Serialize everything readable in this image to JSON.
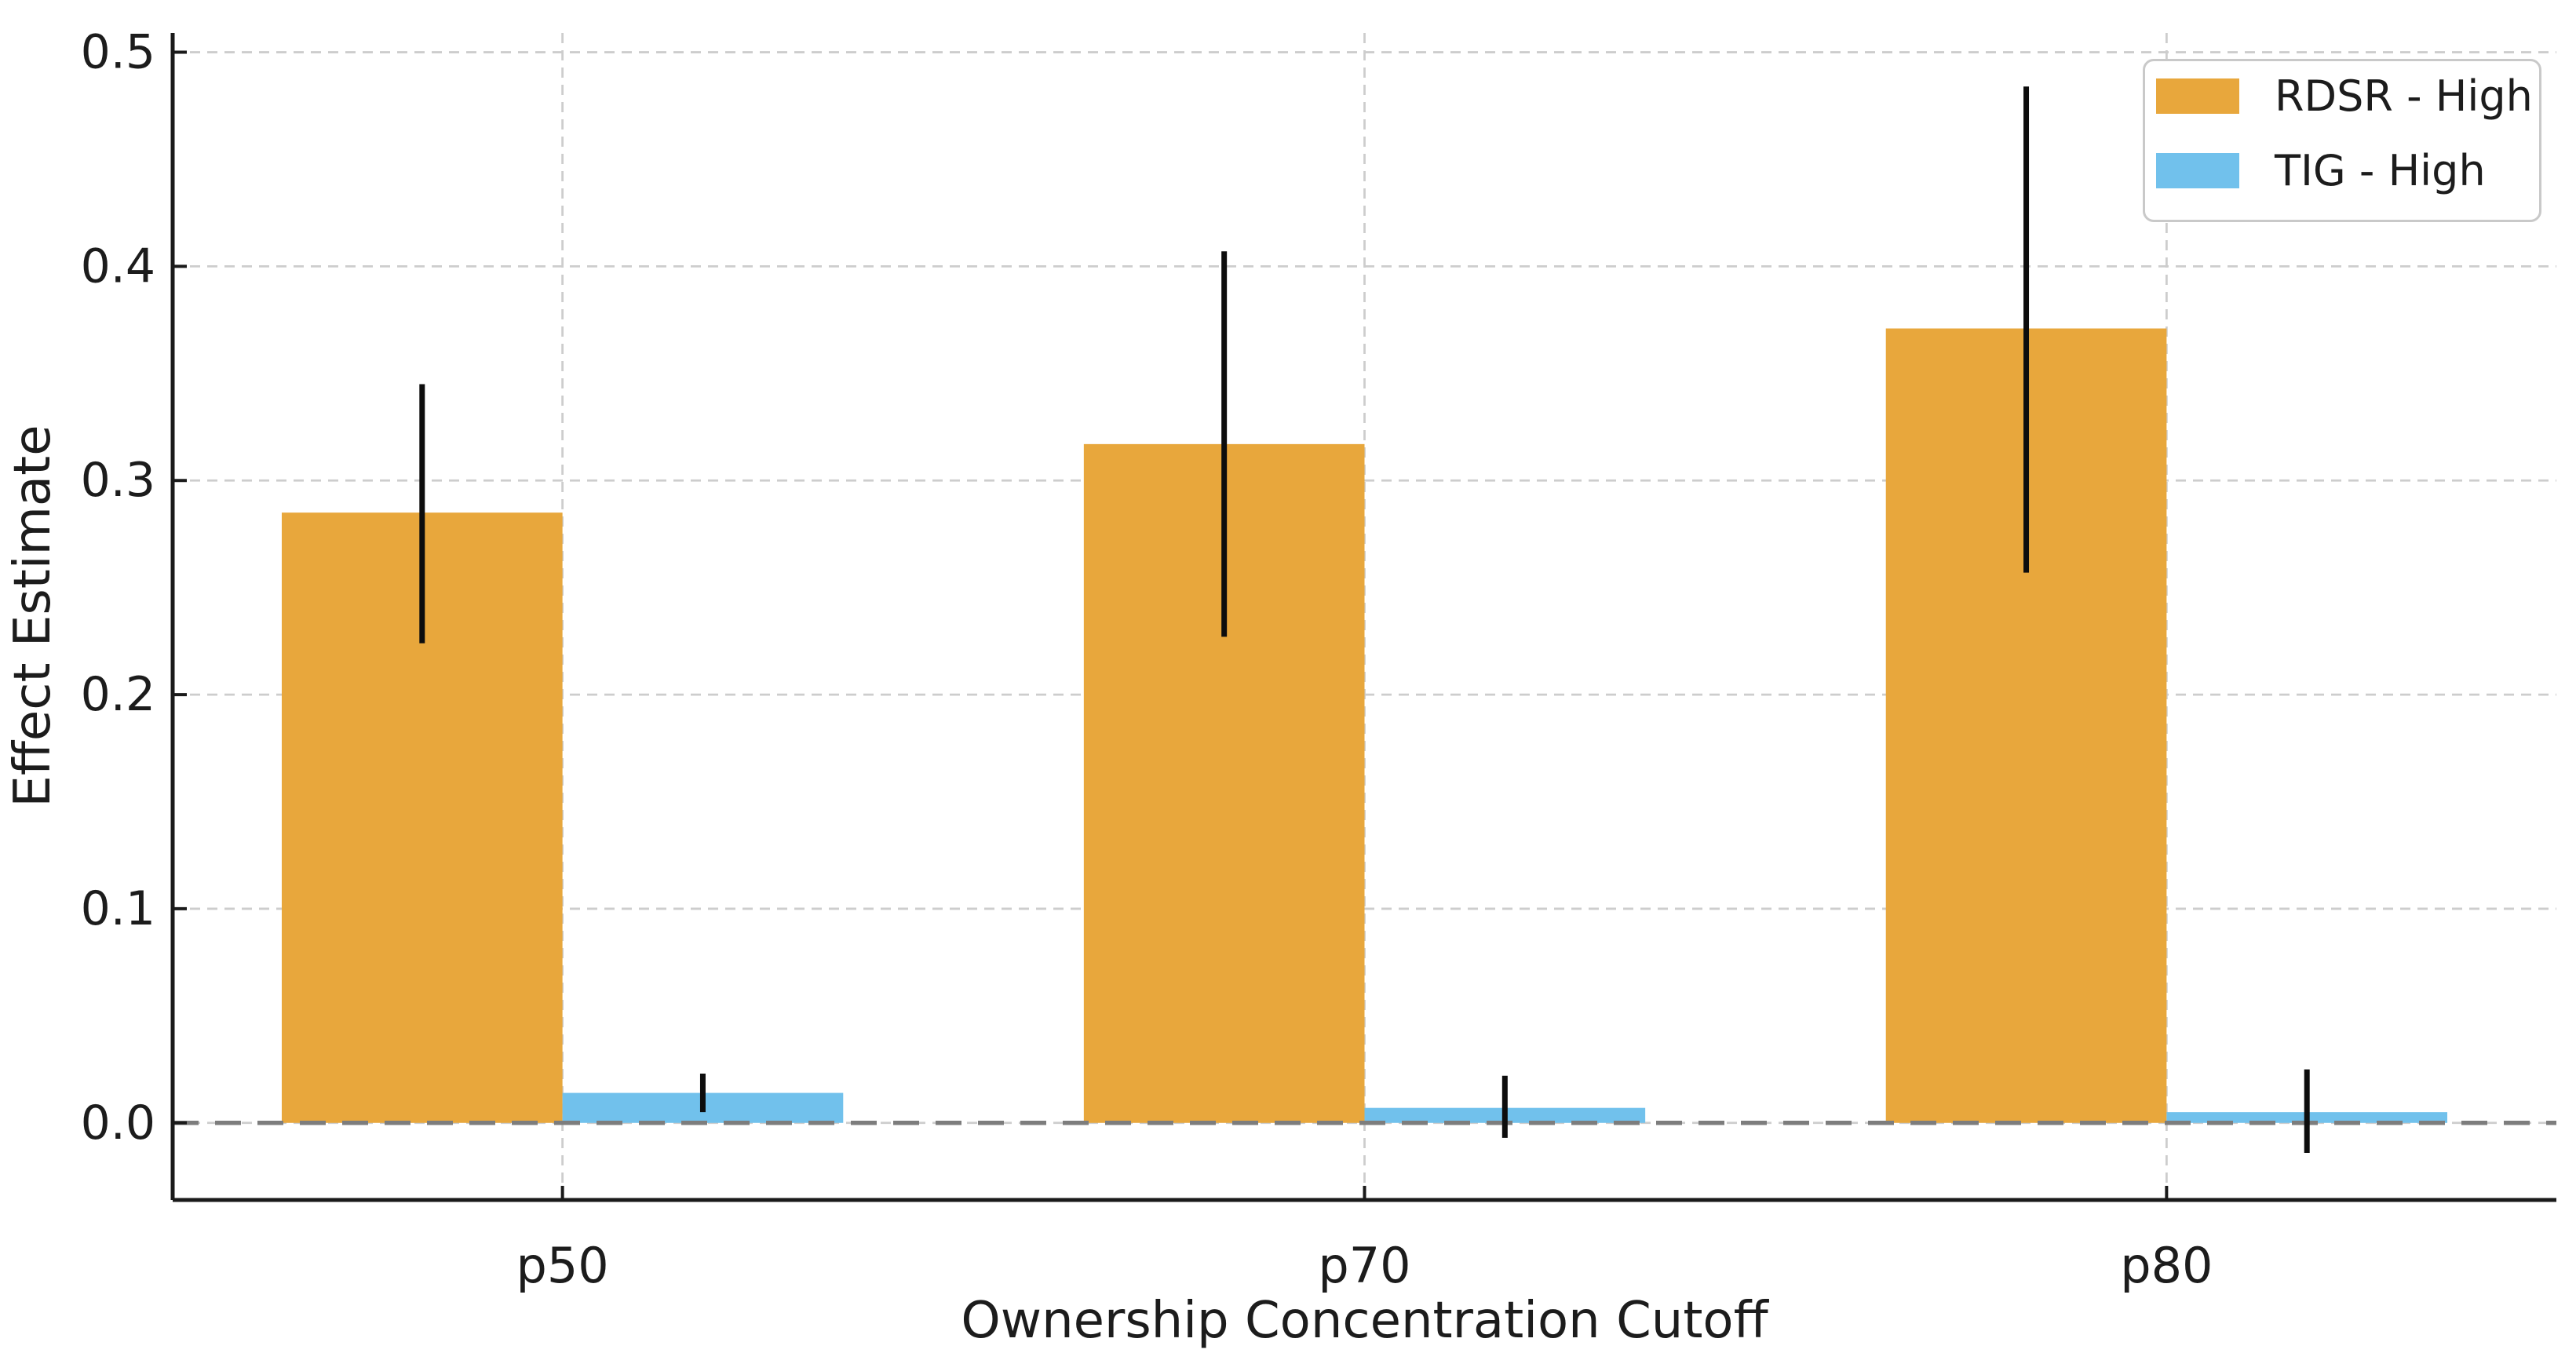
{
  "chart_data": {
    "type": "bar",
    "xlabel": "Ownership Concentration Cutoff",
    "ylabel": "Effect Estimate",
    "categories": [
      "p50",
      "p70",
      "p80"
    ],
    "series": [
      {
        "name": "RDSR - High",
        "color": "#E8A73C",
        "values": [
          0.285,
          0.317,
          0.371
        ],
        "error_low": [
          0.224,
          0.227,
          0.257
        ],
        "error_high": [
          0.345,
          0.407,
          0.484
        ]
      },
      {
        "name": "TIG - High",
        "color": "#71C1EC",
        "values": [
          0.014,
          0.007,
          0.005
        ],
        "error_low": [
          0.005,
          -0.007,
          -0.014
        ],
        "error_high": [
          0.023,
          0.022,
          0.025
        ]
      }
    ],
    "ytick_labels": [
      "0.0",
      "0.1",
      "0.2",
      "0.3",
      "0.4",
      "0.5"
    ],
    "ytick_values": [
      0.0,
      0.1,
      0.2,
      0.3,
      0.4,
      0.5
    ],
    "ylim": [
      -0.036,
      0.509
    ],
    "grid": {
      "horizontal": true,
      "vertical": true,
      "line_style": "dashed",
      "color": "#cdcdcd"
    },
    "zero_line": {
      "value": 0.0,
      "style": "dashed",
      "color": "#7d7d7d"
    },
    "error_bar_color": "#0d0d0d",
    "spine_color": "#1a1a1a",
    "text_color": "#1c1c1c",
    "background": "#ffffff",
    "legend_position": "upper right"
  }
}
